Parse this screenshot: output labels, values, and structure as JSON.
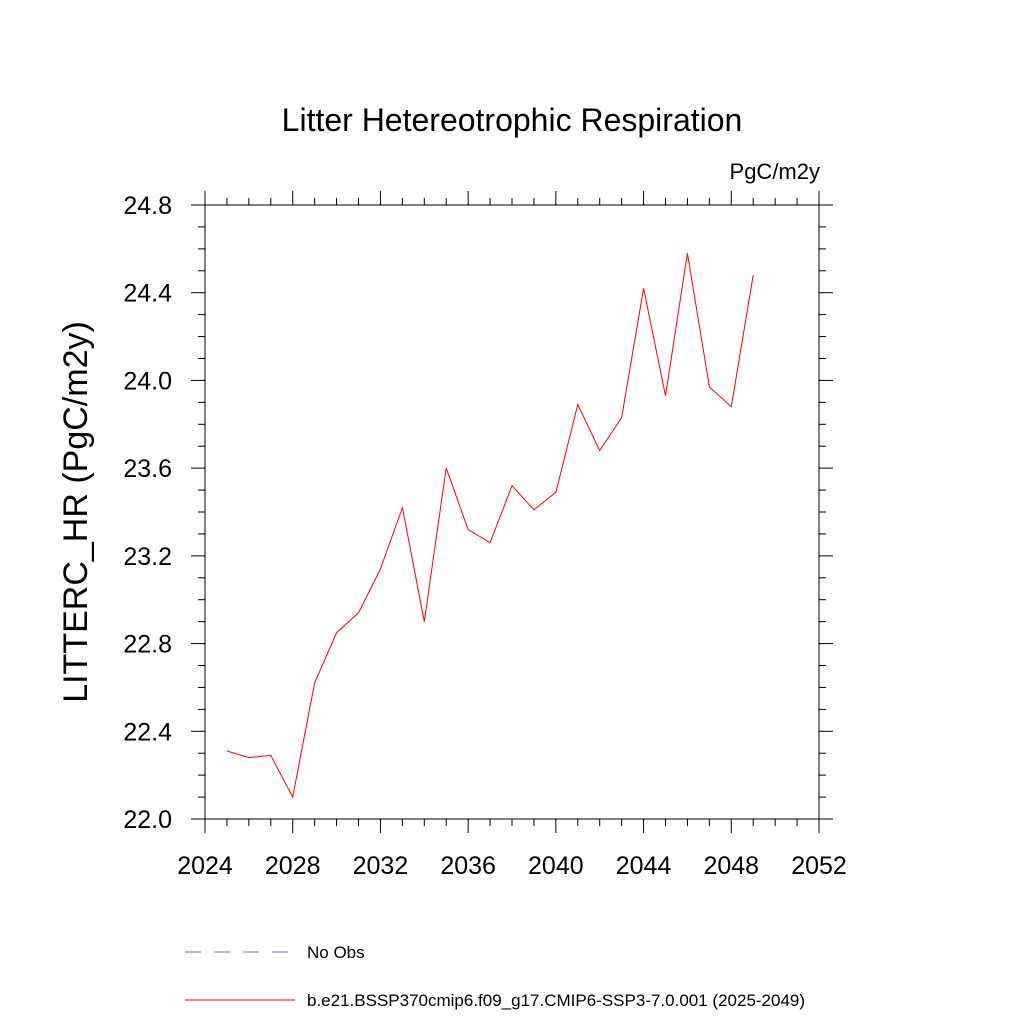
{
  "chart_data": {
    "type": "line",
    "title": "Litter Hetereotrophic Respiration",
    "units": "PgC/m2y",
    "ylabel": "LITTERC_HR  (PgC/m2y)",
    "xlabel": "",
    "xlim": [
      2024,
      2052
    ],
    "ylim": [
      22.0,
      24.8
    ],
    "xticks": [
      2024,
      2028,
      2032,
      2036,
      2040,
      2044,
      2048,
      2052
    ],
    "yticks": [
      22.0,
      22.4,
      22.8,
      23.2,
      23.6,
      24.0,
      24.4,
      24.8
    ],
    "ytick_labels": [
      "22.0",
      "22.4",
      "22.8",
      "23.2",
      "23.6",
      "24.0",
      "24.4",
      "24.8"
    ],
    "grid": false,
    "series": [
      {
        "name": "b.e21.BSSP370cmip6.f09_g17.CMIP6-SSP3-7.0.001 (2025-2049)",
        "color": "#ff0000",
        "x": [
          2025,
          2026,
          2027,
          2028,
          2029,
          2030,
          2031,
          2032,
          2033,
          2034,
          2035,
          2036,
          2037,
          2038,
          2039,
          2040,
          2041,
          2042,
          2043,
          2044,
          2045,
          2046,
          2047,
          2048,
          2049
        ],
        "y": [
          22.31,
          22.28,
          22.29,
          22.1,
          22.62,
          22.85,
          22.94,
          23.14,
          23.42,
          22.9,
          23.6,
          23.32,
          23.26,
          23.52,
          23.41,
          23.49,
          23.89,
          23.68,
          23.83,
          24.42,
          23.93,
          24.58,
          23.97,
          23.88,
          24.48
        ]
      }
    ],
    "legend": {
      "placement": "bottom",
      "entries": [
        {
          "label": "No Obs",
          "color": "#7b68ee",
          "style": "dashed"
        },
        {
          "label": "b.e21.BSSP370cmip6.f09_g17.CMIP6-SSP3-7.0.001 (2025-2049)",
          "color": "#ff0000",
          "style": "solid"
        }
      ]
    }
  }
}
